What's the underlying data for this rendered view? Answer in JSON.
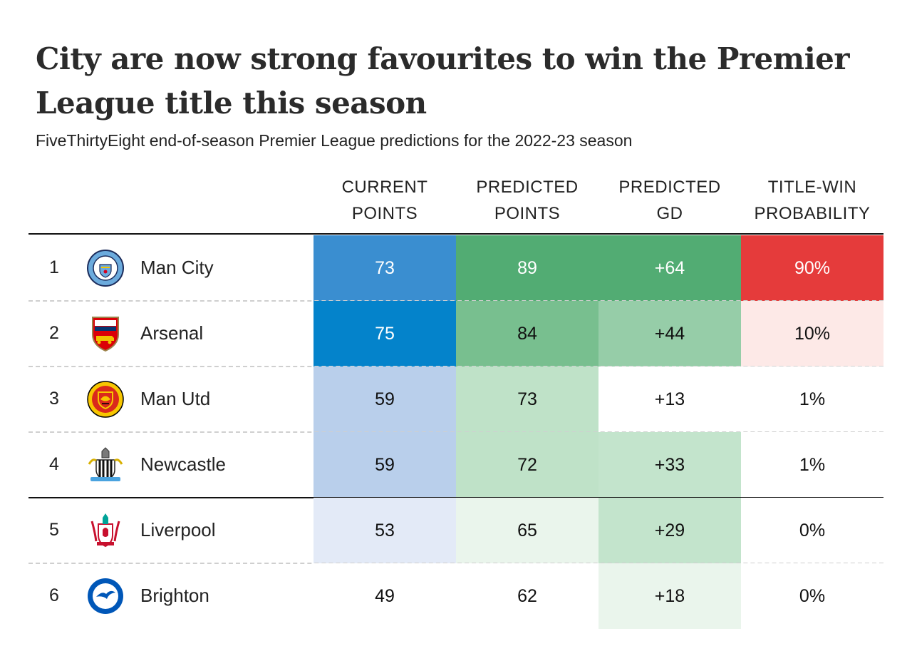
{
  "title": "City are now strong favourites to win the Premier League title this season",
  "subtitle": "FiveThirtyEight end-of-season Premier League predictions for the 2022-23 season",
  "columns": [
    {
      "line1": "CURRENT",
      "line2": "POINTS"
    },
    {
      "line1": "PREDICTED",
      "line2": "POINTS"
    },
    {
      "line1": "PREDICTED",
      "line2": "GD"
    },
    {
      "line1": "TITLE-WIN",
      "line2": "PROBABILITY"
    }
  ],
  "colors": {
    "points_blue": [
      "#ffffff",
      "#e3eaf7",
      "#b9cfeb",
      "#3a8ed0",
      "#0483cb"
    ],
    "predicted_green": [
      "#ffffff",
      "#eaf5ec",
      "#bfe2c8",
      "#78bf8f",
      "#52ac73"
    ],
    "gd_green": [
      "#ffffff",
      "#eaf5ec",
      "#c3e4cc",
      "#96cda8",
      "#52ac73"
    ],
    "prob_red": [
      "#ffffff",
      "#fde9e7",
      "#e53b3b"
    ]
  },
  "chart_data": {
    "type": "table",
    "title": "City are now strong favourites to win the Premier League title this season",
    "subtitle": "FiveThirtyEight end-of-season Premier League predictions for the 2022-23 season",
    "columns": [
      "CURRENT POINTS",
      "PREDICTED POINTS",
      "PREDICTED GD",
      "TITLE-WIN PROBABILITY"
    ],
    "rows": [
      {
        "rank": "1",
        "team": "Man City",
        "logo": "man-city-crest-icon",
        "current_points": "73",
        "predicted_points": "89",
        "predicted_gd": "+64",
        "title_prob": "90%",
        "shades": [
          3,
          4,
          4,
          2
        ]
      },
      {
        "rank": "2",
        "team": "Arsenal",
        "logo": "arsenal-crest-icon",
        "current_points": "75",
        "predicted_points": "84",
        "predicted_gd": "+44",
        "title_prob": "10%",
        "shades": [
          4,
          3,
          3,
          1
        ]
      },
      {
        "rank": "3",
        "team": "Man Utd",
        "logo": "man-utd-crest-icon",
        "current_points": "59",
        "predicted_points": "73",
        "predicted_gd": "+13",
        "title_prob": "1%",
        "shades": [
          2,
          2,
          0,
          0
        ]
      },
      {
        "rank": "4",
        "team": "Newcastle",
        "logo": "newcastle-crest-icon",
        "current_points": "59",
        "predicted_points": "72",
        "predicted_gd": "+33",
        "title_prob": "1%",
        "shades": [
          2,
          2,
          2,
          0
        ]
      },
      {
        "rank": "5",
        "team": "Liverpool",
        "logo": "liverpool-crest-icon",
        "current_points": "53",
        "predicted_points": "65",
        "predicted_gd": "+29",
        "title_prob": "0%",
        "shades": [
          1,
          1,
          2,
          0
        ]
      },
      {
        "rank": "6",
        "team": "Brighton",
        "logo": "brighton-crest-icon",
        "current_points": "49",
        "predicted_points": "62",
        "predicted_gd": "+18",
        "title_prob": "0%",
        "shades": [
          0,
          0,
          1,
          0
        ]
      }
    ]
  }
}
